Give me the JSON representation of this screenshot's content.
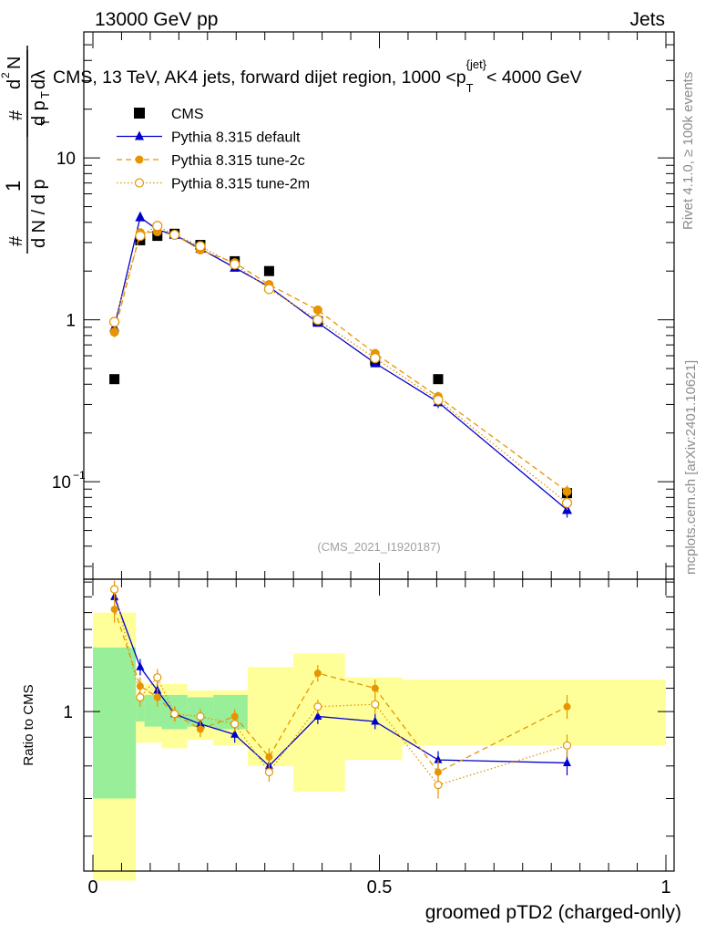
{
  "header": {
    "left": "13000 GeV pp",
    "right": "Jets"
  },
  "side_labels": {
    "rivet": "Rivet 4.1.0, ≥ 100k events",
    "mcplots": "mcplots.cern.ch [arXiv:2401.10621]"
  },
  "chart_data": [
    {
      "type": "scatter",
      "panel": "main",
      "title": "CMS, 13 TeV, AK4 jets, forward dijet region, 1000 <p_T^{jet}< 4000 GeV",
      "title_parts": {
        "pre": "CMS, 13 TeV, AK4 jets, forward dijet region, 1000 <p",
        "sub": "T",
        "sup": "{jet}",
        "post": "< 4000 GeV"
      },
      "ylabel": "1/(dN/dp_T) d²N/(dp_T dλ)",
      "ylabel_parts": {
        "one": "1",
        "hash": "#",
        "den": "d N / d p",
        "T": "T",
        "num": "d",
        "sq": "2",
        "N": "N",
        "dpt": "d p",
        "dl": "dλ"
      },
      "yscale": "log",
      "ylim": [
        0.025,
        60
      ],
      "ytick_labels": [
        {
          "v": 0.1,
          "base": "10",
          "exp": "−1"
        },
        {
          "v": 1,
          "base": "1",
          "exp": ""
        },
        {
          "v": 10,
          "base": "10",
          "exp": ""
        }
      ],
      "xlim": [
        0,
        1
      ],
      "watermark": "(CMS_2021_I1920187)",
      "series": [
        {
          "name": "CMS",
          "style": "data",
          "color": "#000000",
          "x": [
            0.0375,
            0.0825,
            0.1125,
            0.1425,
            0.1875,
            0.2475,
            0.3075,
            0.3925,
            0.4925,
            0.6025,
            0.8275
          ],
          "y": [
            0.43,
            3.1,
            3.3,
            3.4,
            2.9,
            2.3,
            2.0,
            0.98,
            0.56,
            0.43,
            0.085
          ]
        },
        {
          "name": "Pythia 8.315 default",
          "style": "solid-triangle",
          "color": "#0000cc",
          "x": [
            0.0375,
            0.0825,
            0.1125,
            0.1425,
            0.1875,
            0.2475,
            0.3075,
            0.3925,
            0.4925,
            0.6025,
            0.8275
          ],
          "y": [
            0.9,
            4.3,
            3.6,
            3.35,
            2.75,
            2.1,
            1.6,
            0.96,
            0.54,
            0.31,
            0.067
          ],
          "err": [
            0.05,
            0.2,
            0.15,
            0.12,
            0.1,
            0.08,
            0.06,
            0.04,
            0.025,
            0.025,
            0.007
          ]
        },
        {
          "name": "Pythia 8.315 tune-2c",
          "style": "dashed-filled-circle",
          "color": "#e69500",
          "x": [
            0.0375,
            0.0825,
            0.1125,
            0.1425,
            0.1875,
            0.2475,
            0.3075,
            0.3925,
            0.4925,
            0.6025,
            0.8275
          ],
          "y": [
            0.84,
            3.45,
            3.5,
            3.35,
            2.7,
            2.25,
            1.65,
            1.15,
            0.62,
            0.335,
            0.087
          ],
          "err": [
            0.06,
            0.18,
            0.15,
            0.12,
            0.1,
            0.08,
            0.06,
            0.05,
            0.03,
            0.025,
            0.008
          ]
        },
        {
          "name": "Pythia 8.315 tune-2m",
          "style": "dotted-open-circle",
          "color": "#e69500",
          "x": [
            0.0375,
            0.0825,
            0.1125,
            0.1425,
            0.1875,
            0.2475,
            0.3075,
            0.3925,
            0.4925,
            0.6025,
            0.8275
          ],
          "y": [
            0.97,
            3.3,
            3.8,
            3.35,
            2.85,
            2.2,
            1.55,
            1.0,
            0.58,
            0.32,
            0.074
          ],
          "err": [
            0.05,
            0.18,
            0.15,
            0.12,
            0.1,
            0.08,
            0.06,
            0.04,
            0.03,
            0.025,
            0.007
          ]
        }
      ]
    },
    {
      "type": "scatter",
      "panel": "ratio",
      "ylabel": "Ratio to CMS",
      "xlabel": "groomed pTD2 (charged-only)",
      "yscale": "log",
      "ylim": [
        0.52,
        1.72
      ],
      "xlim": [
        0,
        1
      ],
      "xtick_labels": [
        {
          "v": 0,
          "label": "0"
        },
        {
          "v": 0.5,
          "label": "0.5"
        },
        {
          "v": 1,
          "label": "1"
        }
      ],
      "ytick_labels": [
        {
          "v": 1,
          "label": "1"
        }
      ],
      "bins": [
        {
          "lo": 0.0,
          "hi": 0.075,
          "yellow": [
            0.5,
            1.5
          ],
          "green": [
            0.7,
            1.3
          ]
        },
        {
          "lo": 0.075,
          "hi": 0.09,
          "yellow": [
            0.88,
            1.08
          ],
          "green": [
            0.96,
            1.06
          ]
        },
        {
          "lo": 0.09,
          "hi": 0.12,
          "yellow": [
            0.88,
            1.12
          ],
          "green": [
            0.94,
            1.07
          ]
        },
        {
          "lo": 0.12,
          "hi": 0.165,
          "yellow": [
            0.86,
            1.12
          ],
          "green": [
            0.93,
            1.07
          ]
        },
        {
          "lo": 0.165,
          "hi": 0.21,
          "yellow": [
            0.89,
            1.09
          ],
          "green": [
            0.94,
            1.06
          ]
        },
        {
          "lo": 0.21,
          "hi": 0.27,
          "yellow": [
            0.87,
            1.09
          ],
          "green": [
            0.93,
            1.07
          ]
        },
        {
          "lo": 0.27,
          "hi": 0.35,
          "yellow": [
            0.8,
            1.2
          ],
          "green": null
        },
        {
          "lo": 0.35,
          "hi": 0.44,
          "yellow": [
            0.72,
            1.27
          ],
          "green": null
        },
        {
          "lo": 0.44,
          "hi": 0.54,
          "yellow": [
            0.82,
            1.15
          ],
          "green": null
        },
        {
          "lo": 0.54,
          "hi": 1.0,
          "yellow": [
            0.87,
            1.14
          ],
          "green": null
        }
      ],
      "series": [
        {
          "name": "Pythia 8.315 default",
          "style": "solid-triangle",
          "color": "#0000cc",
          "x": [
            0.0375,
            0.0825,
            0.1125,
            0.1425,
            0.1875,
            0.2475,
            0.3075,
            0.3925,
            0.4925,
            0.6025,
            0.8275
          ],
          "y": [
            1.6,
            1.2,
            1.09,
            0.99,
            0.95,
            0.91,
            0.8,
            0.98,
            0.96,
            0.82,
            0.81
          ],
          "err": [
            0.06,
            0.04,
            0.04,
            0.03,
            0.03,
            0.03,
            0.03,
            0.03,
            0.03,
            0.03,
            0.04
          ]
        },
        {
          "name": "Pythia 8.315 tune-2c",
          "style": "dashed-filled-circle",
          "color": "#e69500",
          "x": [
            0.0375,
            0.0825,
            0.1125,
            0.1425,
            0.1875,
            0.2475,
            0.3075,
            0.3925,
            0.4925,
            0.6025,
            0.8275
          ],
          "y": [
            1.52,
            1.11,
            1.06,
            0.99,
            0.93,
            0.98,
            0.83,
            1.17,
            1.1,
            0.78,
            1.02
          ],
          "err": [
            0.08,
            0.04,
            0.04,
            0.03,
            0.03,
            0.03,
            0.03,
            0.04,
            0.04,
            0.04,
            0.05
          ]
        },
        {
          "name": "Pythia 8.315 tune-2m",
          "style": "dotted-open-circle",
          "color": "#e69500",
          "x": [
            0.0375,
            0.0825,
            0.1125,
            0.1425,
            0.1875,
            0.2475,
            0.3075,
            0.3925,
            0.4925,
            0.6025,
            0.8275
          ],
          "y": [
            1.65,
            1.06,
            1.15,
            0.99,
            0.98,
            0.95,
            0.78,
            1.02,
            1.03,
            0.74,
            0.87
          ],
          "err": [
            0.06,
            0.04,
            0.04,
            0.03,
            0.03,
            0.03,
            0.03,
            0.03,
            0.04,
            0.04,
            0.04
          ]
        }
      ]
    }
  ]
}
